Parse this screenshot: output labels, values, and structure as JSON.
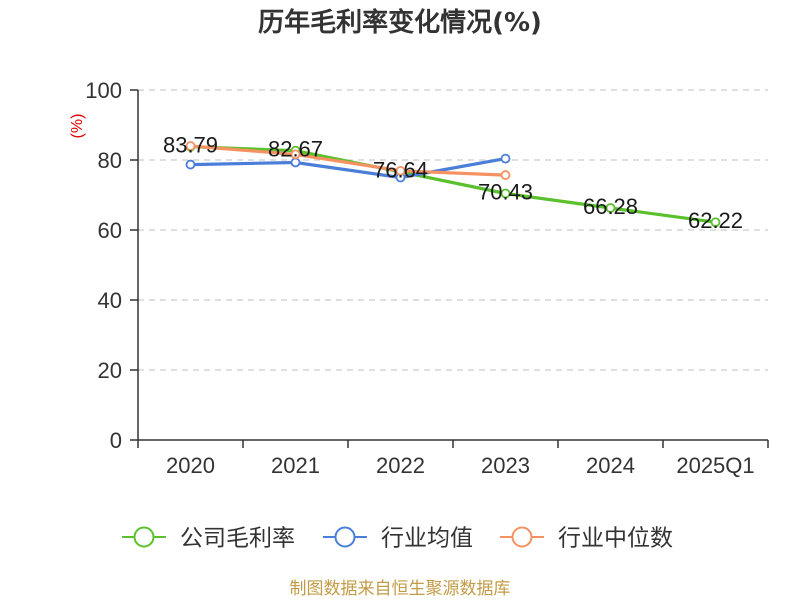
{
  "source_note": "制图数据来自恒生聚源数据库",
  "colors": {
    "title": "#333333",
    "axis": "#333333",
    "grid": "#cccccc",
    "ylabel": "#dd0000",
    "source_note": "#c39b46"
  },
  "chart_data": {
    "type": "line",
    "title": "历年毛利率变化情况(%)",
    "ylabel": "(%)",
    "categories": [
      "2020",
      "2021",
      "2022",
      "2023",
      "2024",
      "2025Q1"
    ],
    "ylim": [
      0,
      100
    ],
    "yticks": [
      0,
      20,
      40,
      60,
      80,
      100
    ],
    "grid": true,
    "legend_position": "bottom",
    "series": [
      {
        "name": "公司毛利率",
        "color": "#5ac02c",
        "show_values": true,
        "values": [
          83.79,
          82.67,
          76.64,
          70.43,
          66.28,
          62.22
        ]
      },
      {
        "name": "行业均值",
        "color": "#4a7ed8",
        "show_values": false,
        "values": [
          78.7,
          79.3,
          75.0,
          80.4,
          null,
          null
        ]
      },
      {
        "name": "行业中位数",
        "color": "#f59262",
        "show_values": false,
        "values": [
          84.0,
          81.6,
          76.9,
          75.7,
          null,
          null
        ]
      }
    ]
  }
}
